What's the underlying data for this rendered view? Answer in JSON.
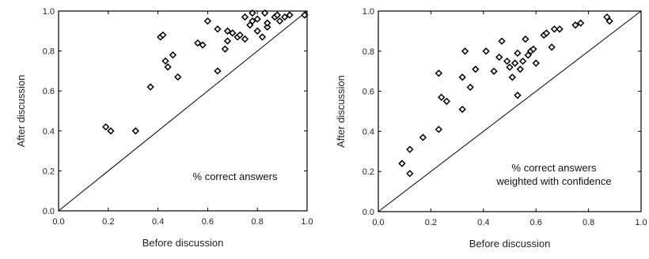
{
  "chart_data": [
    {
      "type": "scatter",
      "xlabel": "Before discussion",
      "ylabel": "After discussion",
      "xlim": [
        0,
        1
      ],
      "ylim": [
        0,
        1
      ],
      "xticks": [
        "0.0",
        "0.2",
        "0.4",
        "0.6",
        "0.8",
        "1.0"
      ],
      "yticks": [
        "0.0",
        "0.2",
        "0.4",
        "0.6",
        "0.8",
        "1.0"
      ],
      "annotation": [
        "% correct answers"
      ],
      "reference_line": "y = x",
      "marker": "diamond",
      "color": "#000000",
      "points": [
        [
          0.19,
          0.42
        ],
        [
          0.21,
          0.4
        ],
        [
          0.31,
          0.4
        ],
        [
          0.37,
          0.62
        ],
        [
          0.41,
          0.87
        ],
        [
          0.42,
          0.88
        ],
        [
          0.43,
          0.75
        ],
        [
          0.44,
          0.72
        ],
        [
          0.46,
          0.78
        ],
        [
          0.48,
          0.67
        ],
        [
          0.56,
          0.84
        ],
        [
          0.58,
          0.83
        ],
        [
          0.6,
          0.95
        ],
        [
          0.64,
          0.7
        ],
        [
          0.64,
          0.91
        ],
        [
          0.67,
          0.81
        ],
        [
          0.68,
          0.85
        ],
        [
          0.68,
          0.9
        ],
        [
          0.7,
          0.89
        ],
        [
          0.72,
          0.87
        ],
        [
          0.73,
          0.88
        ],
        [
          0.75,
          0.86
        ],
        [
          0.75,
          0.97
        ],
        [
          0.77,
          0.93
        ],
        [
          0.78,
          0.95
        ],
        [
          0.78,
          0.99
        ],
        [
          0.8,
          0.9
        ],
        [
          0.8,
          0.96
        ],
        [
          0.82,
          0.87
        ],
        [
          0.83,
          0.99
        ],
        [
          0.84,
          0.92
        ],
        [
          0.84,
          0.94
        ],
        [
          0.87,
          0.97
        ],
        [
          0.88,
          0.98
        ],
        [
          0.89,
          0.95
        ],
        [
          0.91,
          0.97
        ],
        [
          0.93,
          0.98
        ],
        [
          0.99,
          0.98
        ]
      ]
    },
    {
      "type": "scatter",
      "xlabel": "Before discussion",
      "ylabel": "After discussion",
      "xlim": [
        0,
        1
      ],
      "ylim": [
        0,
        1
      ],
      "xticks": [
        "0.0",
        "0.2",
        "0.4",
        "0.6",
        "0.8",
        "1.0"
      ],
      "yticks": [
        "0.0",
        "0.2",
        "0.4",
        "0.6",
        "0.8",
        "1.0"
      ],
      "annotation": [
        "% correct answers",
        "weighted with confidence"
      ],
      "reference_line": "y = x",
      "marker": "diamond",
      "color": "#000000",
      "points": [
        [
          0.09,
          0.24
        ],
        [
          0.12,
          0.19
        ],
        [
          0.12,
          0.31
        ],
        [
          0.17,
          0.37
        ],
        [
          0.23,
          0.41
        ],
        [
          0.23,
          0.69
        ],
        [
          0.24,
          0.57
        ],
        [
          0.26,
          0.55
        ],
        [
          0.32,
          0.51
        ],
        [
          0.32,
          0.67
        ],
        [
          0.33,
          0.8
        ],
        [
          0.35,
          0.62
        ],
        [
          0.37,
          0.71
        ],
        [
          0.41,
          0.8
        ],
        [
          0.44,
          0.7
        ],
        [
          0.46,
          0.77
        ],
        [
          0.47,
          0.85
        ],
        [
          0.49,
          0.75
        ],
        [
          0.5,
          0.72
        ],
        [
          0.51,
          0.67
        ],
        [
          0.52,
          0.74
        ],
        [
          0.53,
          0.58
        ],
        [
          0.53,
          0.79
        ],
        [
          0.54,
          0.71
        ],
        [
          0.55,
          0.75
        ],
        [
          0.56,
          0.86
        ],
        [
          0.57,
          0.78
        ],
        [
          0.58,
          0.8
        ],
        [
          0.59,
          0.81
        ],
        [
          0.6,
          0.74
        ],
        [
          0.63,
          0.88
        ],
        [
          0.64,
          0.89
        ],
        [
          0.66,
          0.82
        ],
        [
          0.67,
          0.91
        ],
        [
          0.69,
          0.91
        ],
        [
          0.75,
          0.93
        ],
        [
          0.77,
          0.94
        ],
        [
          0.87,
          0.97
        ],
        [
          0.88,
          0.95
        ]
      ]
    }
  ]
}
